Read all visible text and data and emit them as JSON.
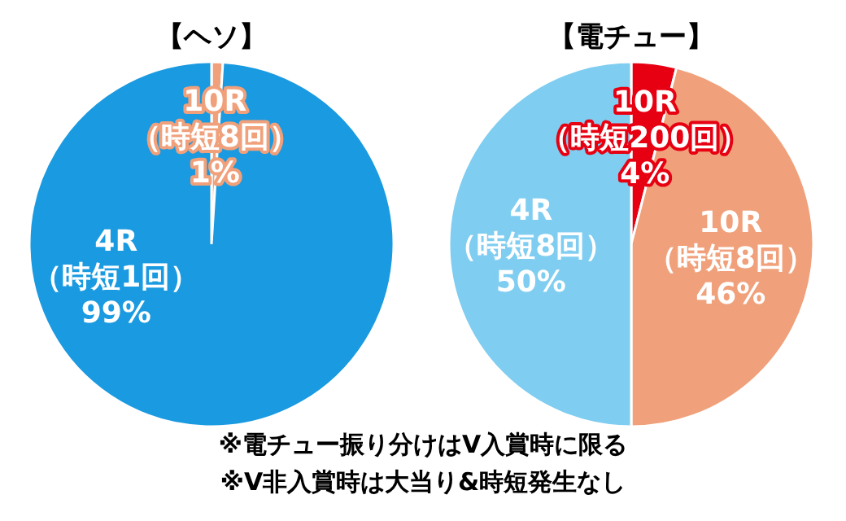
{
  "chart_data": [
    {
      "type": "pie",
      "title": "【ヘソ】",
      "categories": [
        "10R（時短8回）",
        "4R（時短1回）"
      ],
      "values": [
        1,
        99
      ],
      "value_labels": [
        "1%",
        "99%"
      ],
      "colors": [
        "#f0a07a",
        "#1a9ae0"
      ]
    },
    {
      "type": "pie",
      "title": "【電チュー】",
      "categories": [
        "10R（時短200回）",
        "10R（時短8回）",
        "4R（時短8回）"
      ],
      "values": [
        4,
        46,
        50
      ],
      "value_labels": [
        "4%",
        "46%",
        "50%"
      ],
      "colors": [
        "#e60012",
        "#f0a07a",
        "#7fcdf0"
      ],
      "annotations": [
        "※電チュー振り分けはV入賞時に限る",
        "※V非入賞時は大当り&時短発生なし"
      ]
    }
  ]
}
